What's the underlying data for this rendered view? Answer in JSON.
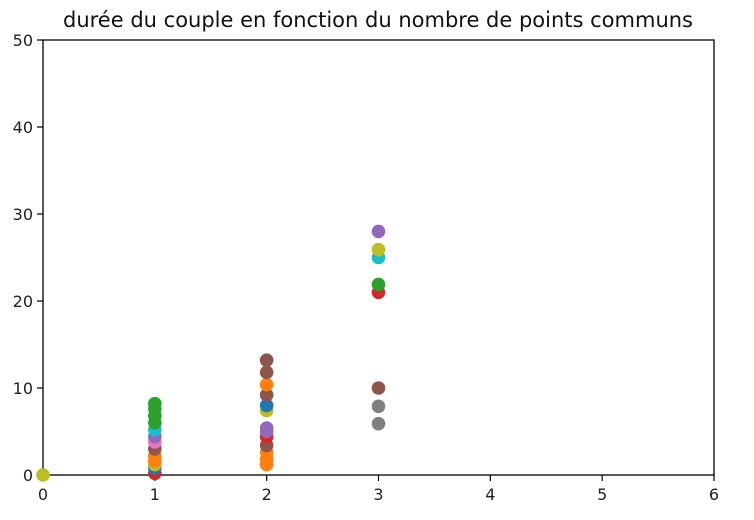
{
  "chart_data": {
    "type": "scatter",
    "title": "durée du couple en fonction du nombre de points communs",
    "xlabel": "",
    "ylabel": "",
    "xlim": [
      0,
      6
    ],
    "ylim": [
      0,
      50
    ],
    "xticks": [
      0,
      1,
      2,
      3,
      4,
      5,
      6
    ],
    "yticks": [
      0,
      10,
      20,
      30,
      40,
      50
    ],
    "grid": false,
    "legend": "none",
    "points": [
      {
        "x": 0,
        "y": 0,
        "color": "#bcbd22"
      },
      {
        "x": 1,
        "y": 0.2,
        "color": "#d62728"
      },
      {
        "x": 1,
        "y": 0.8,
        "color": "#1f77b4"
      },
      {
        "x": 1,
        "y": 1.2,
        "color": "#bcbd22"
      },
      {
        "x": 1,
        "y": 1.6,
        "color": "#ff7f0e"
      },
      {
        "x": 1,
        "y": 2.2,
        "color": "#ff7f0e"
      },
      {
        "x": 1,
        "y": 3.0,
        "color": "#8c564b"
      },
      {
        "x": 1,
        "y": 3.8,
        "color": "#e377c2"
      },
      {
        "x": 1,
        "y": 4.4,
        "color": "#9467bd"
      },
      {
        "x": 1,
        "y": 5.2,
        "color": "#17becf"
      },
      {
        "x": 1,
        "y": 6.0,
        "color": "#2ca02c"
      },
      {
        "x": 1,
        "y": 6.8,
        "color": "#2ca02c"
      },
      {
        "x": 1,
        "y": 7.6,
        "color": "#2ca02c"
      },
      {
        "x": 1,
        "y": 8.2,
        "color": "#2ca02c"
      },
      {
        "x": 2,
        "y": 1.2,
        "color": "#ff7f0e"
      },
      {
        "x": 2,
        "y": 1.8,
        "color": "#ff7f0e"
      },
      {
        "x": 2,
        "y": 2.6,
        "color": "#ff7f0e"
      },
      {
        "x": 2,
        "y": 3.4,
        "color": "#8c564b"
      },
      {
        "x": 2,
        "y": 4.4,
        "color": "#d62728"
      },
      {
        "x": 2,
        "y": 5.0,
        "color": "#9467bd"
      },
      {
        "x": 2,
        "y": 5.4,
        "color": "#9467bd"
      },
      {
        "x": 2,
        "y": 7.4,
        "color": "#bcbd22"
      },
      {
        "x": 2,
        "y": 8.0,
        "color": "#1f77b4"
      },
      {
        "x": 2,
        "y": 9.2,
        "color": "#8c564b"
      },
      {
        "x": 2,
        "y": 10.4,
        "color": "#ff7f0e"
      },
      {
        "x": 2,
        "y": 11.8,
        "color": "#8c564b"
      },
      {
        "x": 2,
        "y": 13.2,
        "color": "#8c564b"
      },
      {
        "x": 3,
        "y": 5.9,
        "color": "#7f7f7f"
      },
      {
        "x": 3,
        "y": 7.9,
        "color": "#7f7f7f"
      },
      {
        "x": 3,
        "y": 10.0,
        "color": "#8c564b"
      },
      {
        "x": 3,
        "y": 21.0,
        "color": "#d62728"
      },
      {
        "x": 3,
        "y": 21.9,
        "color": "#2ca02c"
      },
      {
        "x": 3,
        "y": 25.0,
        "color": "#17becf"
      },
      {
        "x": 3,
        "y": 25.9,
        "color": "#bcbd22"
      },
      {
        "x": 3,
        "y": 28.0,
        "color": "#9467bd"
      }
    ]
  }
}
